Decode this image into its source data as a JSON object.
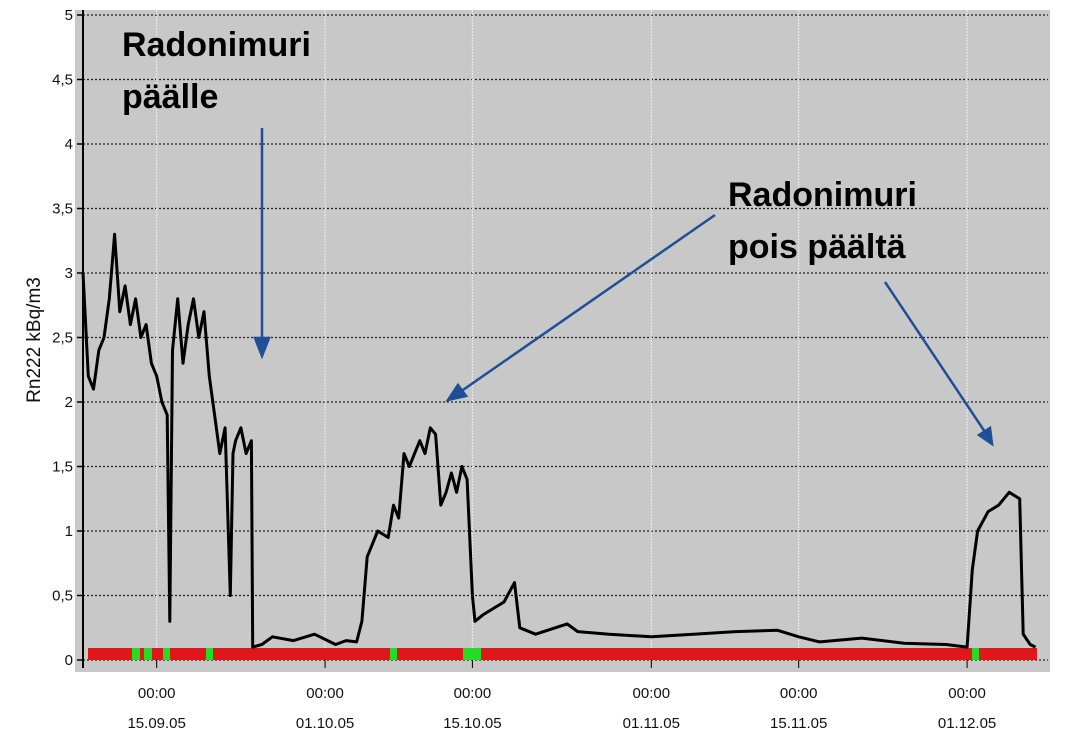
{
  "chart_data": {
    "type": "line",
    "ylabel": "Rn222 kBq/m3",
    "xlim": [
      "2005-09-08T00:00",
      "2005-12-08T12:00"
    ],
    "xticks": [
      {
        "value": "2005-09-15T00:00",
        "label": [
          "00:00",
          "15.09.05"
        ]
      },
      {
        "value": "2005-10-01T00:00",
        "label": [
          "00:00",
          "01.10.05"
        ]
      },
      {
        "value": "2005-10-15T00:00",
        "label": [
          "00:00",
          "15.10.05"
        ]
      },
      {
        "value": "2005-11-01T00:00",
        "label": [
          "00:00",
          "01.11.05"
        ]
      },
      {
        "value": "2005-11-15T00:00",
        "label": [
          "00:00",
          "15.11.05"
        ]
      },
      {
        "value": "2005-12-01T00:00",
        "label": [
          "00:00",
          "01.12.05"
        ]
      }
    ],
    "ylim": [
      0,
      5
    ],
    "yticks": [
      0,
      {
        "value": 0.5,
        "label": "0,5"
      },
      1,
      {
        "value": 1.5,
        "label": "1,5"
      },
      2,
      {
        "value": 2.5,
        "label": "2,5"
      },
      3,
      {
        "value": 3.5,
        "label": "3,5"
      },
      4,
      {
        "value": 4.5,
        "label": "4,5"
      },
      5
    ],
    "grid": true,
    "series": [
      {
        "color": "#000000",
        "x": [
          "2005-09-08T00:00",
          "2005-09-08T12:00",
          "2005-09-09T00:00",
          "2005-09-09T12:00",
          "2005-09-10T00:00",
          "2005-09-10T12:00",
          "2005-09-11T00:00",
          "2005-09-11T12:00",
          "2005-09-12T00:00",
          "2005-09-12T12:00",
          "2005-09-13T00:00",
          "2005-09-13T12:00",
          "2005-09-14T00:00",
          "2005-09-14T12:00",
          "2005-09-15T00:00",
          "2005-09-15T12:00",
          "2005-09-16T00:00",
          "2005-09-16T06:00",
          "2005-09-16T12:00",
          "2005-09-17T00:00",
          "2005-09-17T12:00",
          "2005-09-18T00:00",
          "2005-09-18T12:00",
          "2005-09-19T00:00",
          "2005-09-19T12:00",
          "2005-09-20T00:00",
          "2005-09-20T12:00",
          "2005-09-21T00:00",
          "2005-09-21T12:00",
          "2005-09-22T00:00",
          "2005-09-22T06:00",
          "2005-09-22T12:00",
          "2005-09-23T00:00",
          "2005-09-23T12:00",
          "2005-09-24T00:00",
          "2005-09-24T03:00",
          "2005-09-25T00:00",
          "2005-09-26T00:00",
          "2005-09-28T00:00",
          "2005-09-30T00:00",
          "2005-10-02T00:00",
          "2005-10-03T00:00",
          "2005-10-04T00:00",
          "2005-10-04T12:00",
          "2005-10-05T00:00",
          "2005-10-06T00:00",
          "2005-10-07T00:00",
          "2005-10-07T12:00",
          "2005-10-08T00:00",
          "2005-10-08T12:00",
          "2005-10-09T00:00",
          "2005-10-10T00:00",
          "2005-10-10T12:00",
          "2005-10-11T00:00",
          "2005-10-11T12:00",
          "2005-10-12T00:00",
          "2005-10-12T12:00",
          "2005-10-13T00:00",
          "2005-10-13T12:00",
          "2005-10-14T00:00",
          "2005-10-14T12:00",
          "2005-10-15T00:00",
          "2005-10-15T06:00",
          "2005-10-16T00:00",
          "2005-10-17T00:00",
          "2005-10-18T00:00",
          "2005-10-19T00:00",
          "2005-10-19T12:00",
          "2005-10-21T00:00",
          "2005-10-24T00:00",
          "2005-10-25T00:00",
          "2005-10-28T00:00",
          "2005-11-01T00:00",
          "2005-11-05T00:00",
          "2005-11-09T00:00",
          "2005-11-13T00:00",
          "2005-11-15T00:00",
          "2005-11-17T00:00",
          "2005-11-21T00:00",
          "2005-11-25T00:00",
          "2005-11-29T00:00",
          "2005-12-01T00:00",
          "2005-12-01T12:00",
          "2005-12-02T00:00",
          "2005-12-03T00:00",
          "2005-12-04T00:00",
          "2005-12-05T00:00",
          "2005-12-06T00:00",
          "2005-12-06T08:00",
          "2005-12-07T00:00",
          "2005-12-07T12:00"
        ],
        "values": [
          3.0,
          2.2,
          2.1,
          2.4,
          2.5,
          2.8,
          3.3,
          2.7,
          2.9,
          2.6,
          2.8,
          2.5,
          2.6,
          2.3,
          2.2,
          2.0,
          1.9,
          0.3,
          2.4,
          2.8,
          2.3,
          2.6,
          2.8,
          2.5,
          2.7,
          2.2,
          1.9,
          1.6,
          1.8,
          0.5,
          1.6,
          1.7,
          1.8,
          1.6,
          1.7,
          0.1,
          0.12,
          0.18,
          0.15,
          0.2,
          0.12,
          0.15,
          0.14,
          0.3,
          0.8,
          1.0,
          0.95,
          1.2,
          1.1,
          1.6,
          1.5,
          1.7,
          1.6,
          1.8,
          1.75,
          1.2,
          1.3,
          1.45,
          1.3,
          1.5,
          1.4,
          0.5,
          0.3,
          0.35,
          0.4,
          0.45,
          0.6,
          0.25,
          0.2,
          0.28,
          0.22,
          0.2,
          0.18,
          0.2,
          0.22,
          0.23,
          0.18,
          0.14,
          0.17,
          0.13,
          0.12,
          0.1,
          0.7,
          1.0,
          1.15,
          1.2,
          1.3,
          1.25,
          0.2,
          0.12,
          0.1
        ]
      }
    ],
    "annotations": [
      {
        "text": [
          "Radonimuri",
          "päälle"
        ]
      },
      {
        "text": [
          "Radonimuri",
          "pois päältä"
        ]
      }
    ]
  }
}
